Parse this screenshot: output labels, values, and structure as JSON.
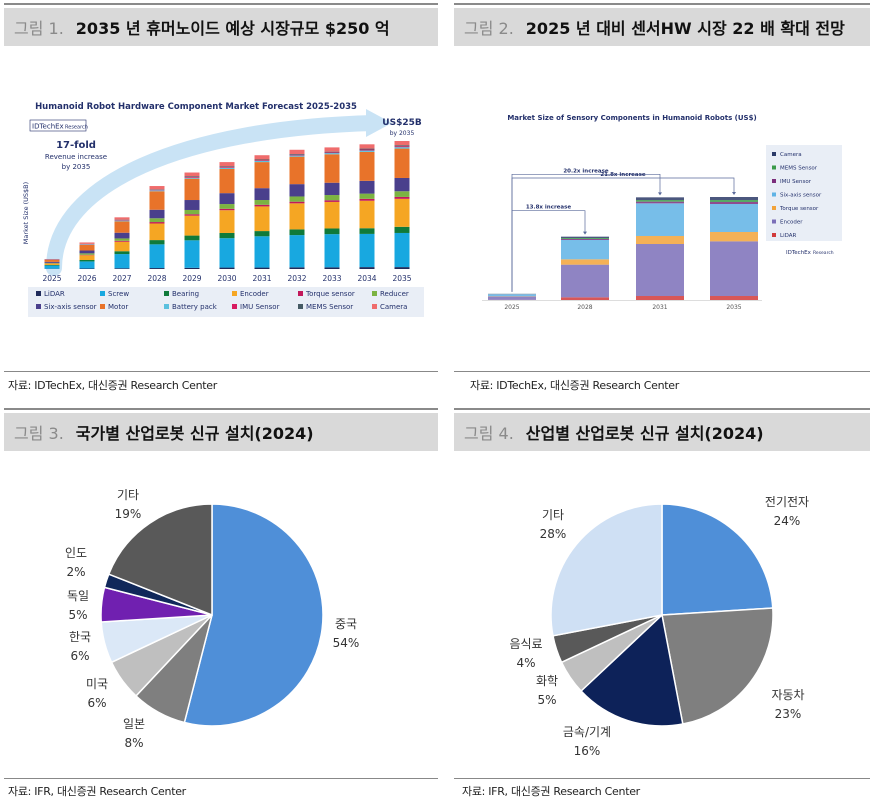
{
  "figures": [
    {
      "num": "그림 1.",
      "title": "2035 년 휴머노이드 예상 시장규모 $250 억",
      "source": "자료: IDTechEx, 대신증권 Research Center"
    },
    {
      "num": "그림 2.",
      "title": "2025 년 대비 센서HW 시장 22 배 확대 전망",
      "source": "자료: IDTechEx, 대신증권 Research Center"
    },
    {
      "num": "그림 3.",
      "title": "국가별 산업로봇 신규 설치(2024)",
      "source": "자료: IFR, 대신증권 Research Center"
    },
    {
      "num": "그림 4.",
      "title": "산업별 산업로봇 신규 설치(2024)",
      "source": "자료: IFR, 대신증권 Research Center"
    }
  ],
  "chart_data": [
    {
      "type": "bar",
      "stacked": true,
      "title": "Humanoid Robot Hardware Component Market Forecast 2025-2035",
      "brand": "IDTechEx",
      "brand_tag": "Research",
      "ylabel": "Market Size (US$B)",
      "annotation_main": "17-fold",
      "annotation_sub1": "Revenue increase",
      "annotation_sub2": "by 2035",
      "end_label": "US$25B",
      "end_sub": "by 2035",
      "ylim": [
        0,
        27
      ],
      "categories": [
        "2025",
        "2026",
        "2027",
        "2028",
        "2029",
        "2030",
        "2031",
        "2032",
        "2033",
        "2034",
        "2035"
      ],
      "legend_position": "bottom",
      "series": [
        {
          "name": "LiDAR",
          "color": "#1f2a5a",
          "values": [
            0.05,
            0.1,
            0.15,
            0.2,
            0.25,
            0.3,
            0.3,
            0.35,
            0.35,
            0.4,
            0.4
          ]
        },
        {
          "name": "Screw",
          "color": "#18a8e0",
          "values": [
            0.7,
            1.5,
            3.0,
            5.0,
            5.8,
            6.2,
            6.6,
            6.8,
            7.0,
            7.0,
            7.2
          ]
        },
        {
          "name": "Bearing",
          "color": "#0f7a3a",
          "values": [
            0.1,
            0.3,
            0.6,
            0.9,
            1.0,
            1.1,
            1.1,
            1.2,
            1.2,
            1.2,
            1.3
          ]
        },
        {
          "name": "Encoder",
          "color": "#f5a623",
          "values": [
            0.3,
            1.0,
            2.0,
            3.5,
            4.2,
            4.8,
            5.2,
            5.5,
            5.6,
            5.8,
            5.9
          ]
        },
        {
          "name": "Torque sensor",
          "color": "#c2185b",
          "values": [
            0.05,
            0.1,
            0.2,
            0.3,
            0.3,
            0.3,
            0.35,
            0.35,
            0.35,
            0.4,
            0.4
          ]
        },
        {
          "name": "Reducer",
          "color": "#7cb342",
          "values": [
            0.1,
            0.3,
            0.5,
            0.8,
            0.9,
            1.0,
            1.0,
            1.1,
            1.1,
            1.1,
            1.2
          ]
        },
        {
          "name": "Six-axis sensor",
          "color": "#4a3f8c",
          "values": [
            0.2,
            0.6,
            1.2,
            1.8,
            2.1,
            2.3,
            2.5,
            2.6,
            2.6,
            2.7,
            2.8
          ]
        },
        {
          "name": "Motor",
          "color": "#e8732a",
          "values": [
            0.4,
            1.2,
            2.4,
            3.9,
            4.5,
            5.1,
            5.5,
            5.8,
            6.0,
            6.1,
            6.2
          ]
        },
        {
          "name": "Battery pack",
          "color": "#5bc0de",
          "values": [
            0.05,
            0.1,
            0.15,
            0.2,
            0.2,
            0.25,
            0.25,
            0.25,
            0.25,
            0.3,
            0.3
          ]
        },
        {
          "name": "IMU Sensor",
          "color": "#d81b60",
          "values": [
            0.03,
            0.05,
            0.1,
            0.1,
            0.15,
            0.15,
            0.15,
            0.15,
            0.15,
            0.2,
            0.2
          ]
        },
        {
          "name": "MEMS Sensor",
          "color": "#455a64",
          "values": [
            0.03,
            0.05,
            0.1,
            0.1,
            0.15,
            0.15,
            0.15,
            0.15,
            0.15,
            0.2,
            0.2
          ]
        },
        {
          "name": "Camera",
          "color": "#ef6c6c",
          "values": [
            0.1,
            0.3,
            0.5,
            0.7,
            0.8,
            0.9,
            0.9,
            0.9,
            0.9,
            0.9,
            0.9
          ]
        }
      ]
    },
    {
      "type": "bar",
      "stacked": true,
      "title": "Market Size of Sensory Components in Humanoid Robots (US$)",
      "brand": "IDTechEx",
      "brand_tag": "Research",
      "categories": [
        "2025",
        "2028",
        "2031",
        "2035"
      ],
      "ylim": [
        0,
        22.5
      ],
      "legend_position": "right",
      "annotations": [
        "13.8x increase",
        "20.2x increase",
        "21.8x increase"
      ],
      "series": [
        {
          "name": "Camera",
          "color": "#2b3a67",
          "values": [
            0.02,
            0.2,
            0.4,
            0.45
          ]
        },
        {
          "name": "MEMS Sensor",
          "color": "#3a9a4a",
          "values": [
            0.02,
            0.15,
            0.25,
            0.3
          ]
        },
        {
          "name": "IMU Sensor",
          "color": "#7b2d7b",
          "values": [
            0.02,
            0.15,
            0.25,
            0.3
          ]
        },
        {
          "name": "Six-axis sensor",
          "color": "#5fb3e5",
          "values": [
            0.3,
            2.9,
            4.9,
            4.2
          ]
        },
        {
          "name": "Torque sensor",
          "color": "#f2a33a",
          "values": [
            0.05,
            0.8,
            1.2,
            1.4
          ]
        },
        {
          "name": "Encoder",
          "color": "#7b6fb8",
          "values": [
            0.5,
            4.9,
            7.8,
            8.2
          ]
        },
        {
          "name": "LiDAR",
          "color": "#d13a3a",
          "values": [
            0.02,
            0.4,
            0.6,
            0.6
          ]
        }
      ]
    },
    {
      "type": "pie",
      "slices": [
        {
          "label": "중국",
          "value": 54,
          "text": "54%",
          "color": "#4f8fd8"
        },
        {
          "label": "일본",
          "value": 8,
          "text": "8%",
          "color": "#7f7f7f"
        },
        {
          "label": "미국",
          "value": 6,
          "text": "6%",
          "color": "#bfbfbf"
        },
        {
          "label": "한국",
          "value": 6,
          "text": "6%",
          "color": "#dbe8f7"
        },
        {
          "label": "독일",
          "value": 5,
          "text": "5%",
          "color": "#7020b0"
        },
        {
          "label": "인도",
          "value": 2,
          "text": "2%",
          "color": "#10285a"
        },
        {
          "label": "기타",
          "value": 19,
          "text": "19%",
          "color": "#595959"
        }
      ]
    },
    {
      "type": "pie",
      "slices": [
        {
          "label": "전기전자",
          "value": 24,
          "text": "24%",
          "color": "#4f8fd8"
        },
        {
          "label": "자동차",
          "value": 23,
          "text": "23%",
          "color": "#7f7f7f"
        },
        {
          "label": "금속/기계",
          "value": 16,
          "text": "16%",
          "color": "#0d2259"
        },
        {
          "label": "화학",
          "value": 5,
          "text": "5%",
          "color": "#bfbfbf"
        },
        {
          "label": "음식료",
          "value": 4,
          "text": "4%",
          "color": "#595959"
        },
        {
          "label": "기타",
          "value": 28,
          "text": "28%",
          "color": "#cfe0f4"
        }
      ]
    }
  ]
}
